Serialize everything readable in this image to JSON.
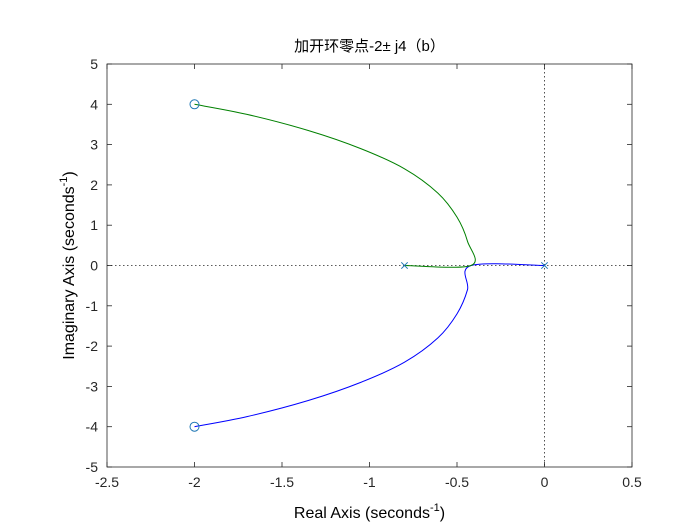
{
  "chart_data": {
    "type": "line",
    "title": "加开环零点-2± j4（b）",
    "xlabel": {
      "text": "Real Axis (seconds",
      "sup": "-1",
      "close": ")"
    },
    "ylabel": {
      "text": "Imaginary Axis (seconds",
      "sup": "-1",
      "close": ")"
    },
    "xlim": [
      -2.5,
      0.5
    ],
    "ylim": [
      -5,
      5
    ],
    "xticks": [
      -2.5,
      -2,
      -1.5,
      -1,
      -0.5,
      0,
      0.5
    ],
    "xtick_labels": [
      "-2.5",
      "-2",
      "-1.5",
      "-1",
      "-0.5",
      "0",
      "0.5"
    ],
    "yticks": [
      -5,
      -4,
      -3,
      -2,
      -1,
      0,
      1,
      2,
      3,
      4,
      5
    ],
    "ytick_labels": [
      "-5",
      "-4",
      "-3",
      "-2",
      "-1",
      "0",
      "1",
      "2",
      "3",
      "4",
      "5"
    ],
    "grid": false,
    "reference_lines": {
      "x": 0,
      "y": 0,
      "style": "dotted"
    },
    "poles": [
      {
        "re": -0.8,
        "im": 0
      },
      {
        "re": 0,
        "im": 0
      }
    ],
    "zeros": [
      {
        "re": -2,
        "im": 4
      },
      {
        "re": -2,
        "im": -4
      }
    ],
    "series": [
      {
        "color": "#0000ff",
        "points": [
          [
            0,
            0
          ],
          [
            -0.42,
            0
          ],
          [
            -0.44,
            -0.6
          ],
          [
            -0.5,
            -1.2
          ],
          [
            -0.61,
            -1.8
          ],
          [
            -0.8,
            -2.4
          ],
          [
            -1.05,
            -2.9
          ],
          [
            -1.35,
            -3.35
          ],
          [
            -1.7,
            -3.75
          ],
          [
            -2,
            -4
          ]
        ]
      },
      {
        "color": "#008000",
        "points": [
          [
            -0.8,
            0
          ],
          [
            -0.42,
            0
          ],
          [
            -0.44,
            0.6
          ],
          [
            -0.5,
            1.2
          ],
          [
            -0.61,
            1.8
          ],
          [
            -0.8,
            2.4
          ],
          [
            -1.05,
            2.9
          ],
          [
            -1.35,
            3.35
          ],
          [
            -1.7,
            3.75
          ],
          [
            -2,
            4
          ]
        ]
      }
    ],
    "marker_color": "#1f77b4",
    "axis_color": "#262626"
  }
}
